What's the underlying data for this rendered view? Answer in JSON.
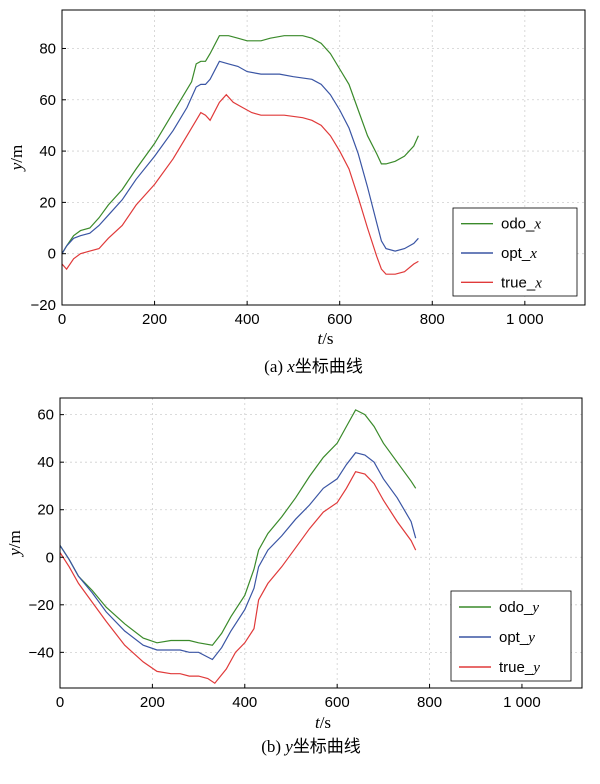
{
  "chart_data": [
    {
      "type": "line",
      "caption": "(a) x坐标曲线",
      "xlabel": "t/s",
      "ylabel": "y/m",
      "xlim": [
        0,
        1130
      ],
      "ylim": [
        -20,
        95
      ],
      "xticks": [
        0,
        200,
        400,
        600,
        800,
        1000
      ],
      "xtick_labels": [
        "0",
        "200",
        "400",
        "600",
        "800",
        "1 000"
      ],
      "yticks": [
        -20,
        0,
        20,
        40,
        60,
        80
      ],
      "ytick_labels": [
        "−20",
        "0",
        "20",
        "40",
        "60",
        "80"
      ],
      "grid": true,
      "legend": "lower-right",
      "series": [
        {
          "name": "odo_x",
          "color": "#3a8a2a",
          "points": [
            [
              0,
              0
            ],
            [
              10,
              3
            ],
            [
              25,
              7
            ],
            [
              40,
              9
            ],
            [
              60,
              10
            ],
            [
              80,
              14
            ],
            [
              100,
              19
            ],
            [
              130,
              25
            ],
            [
              160,
              33
            ],
            [
              200,
              43
            ],
            [
              240,
              55
            ],
            [
              280,
              67
            ],
            [
              290,
              74
            ],
            [
              300,
              75
            ],
            [
              310,
              75
            ],
            [
              320,
              78
            ],
            [
              340,
              85
            ],
            [
              360,
              85
            ],
            [
              380,
              84
            ],
            [
              400,
              83
            ],
            [
              430,
              83
            ],
            [
              450,
              84
            ],
            [
              480,
              85
            ],
            [
              520,
              85
            ],
            [
              540,
              84
            ],
            [
              560,
              82
            ],
            [
              580,
              78
            ],
            [
              600,
              72
            ],
            [
              620,
              66
            ],
            [
              640,
              56
            ],
            [
              660,
              46
            ],
            [
              680,
              39
            ],
            [
              690,
              35
            ],
            [
              700,
              35
            ],
            [
              720,
              36
            ],
            [
              740,
              38
            ],
            [
              760,
              42
            ],
            [
              770,
              46
            ]
          ]
        },
        {
          "name": "opt_x",
          "color": "#3a55a4",
          "points": [
            [
              0,
              0
            ],
            [
              10,
              3
            ],
            [
              25,
              6
            ],
            [
              40,
              7
            ],
            [
              60,
              8
            ],
            [
              80,
              11
            ],
            [
              100,
              15
            ],
            [
              130,
              21
            ],
            [
              160,
              29
            ],
            [
              200,
              38
            ],
            [
              240,
              48
            ],
            [
              270,
              57
            ],
            [
              290,
              65
            ],
            [
              300,
              66
            ],
            [
              310,
              66
            ],
            [
              320,
              68
            ],
            [
              340,
              75
            ],
            [
              360,
              74
            ],
            [
              380,
              73
            ],
            [
              400,
              71
            ],
            [
              430,
              70
            ],
            [
              450,
              70
            ],
            [
              470,
              70
            ],
            [
              500,
              69
            ],
            [
              540,
              68
            ],
            [
              560,
              66
            ],
            [
              580,
              62
            ],
            [
              600,
              56
            ],
            [
              620,
              49
            ],
            [
              640,
              39
            ],
            [
              660,
              26
            ],
            [
              680,
              12
            ],
            [
              690,
              5
            ],
            [
              700,
              2
            ],
            [
              720,
              1
            ],
            [
              740,
              2
            ],
            [
              760,
              4
            ],
            [
              770,
              6
            ]
          ]
        },
        {
          "name": "true_x",
          "color": "#e03a3a",
          "points": [
            [
              0,
              -4
            ],
            [
              10,
              -6
            ],
            [
              25,
              -2
            ],
            [
              40,
              0
            ],
            [
              60,
              1
            ],
            [
              80,
              2
            ],
            [
              100,
              6
            ],
            [
              130,
              11
            ],
            [
              160,
              19
            ],
            [
              200,
              27
            ],
            [
              240,
              37
            ],
            [
              270,
              46
            ],
            [
              290,
              52
            ],
            [
              300,
              55
            ],
            [
              310,
              54
            ],
            [
              320,
              52
            ],
            [
              340,
              59
            ],
            [
              355,
              62
            ],
            [
              370,
              59
            ],
            [
              390,
              57
            ],
            [
              410,
              55
            ],
            [
              430,
              54
            ],
            [
              450,
              54
            ],
            [
              480,
              54
            ],
            [
              520,
              53
            ],
            [
              540,
              52
            ],
            [
              560,
              50
            ],
            [
              580,
              46
            ],
            [
              600,
              40
            ],
            [
              620,
              33
            ],
            [
              640,
              22
            ],
            [
              660,
              10
            ],
            [
              680,
              -1
            ],
            [
              690,
              -6
            ],
            [
              700,
              -8
            ],
            [
              720,
              -8
            ],
            [
              740,
              -7
            ],
            [
              760,
              -4
            ],
            [
              770,
              -3
            ]
          ]
        }
      ]
    },
    {
      "type": "line",
      "caption": "(b) y坐标曲线",
      "xlabel": "t/s",
      "ylabel": "y/m",
      "xlim": [
        0,
        1130
      ],
      "ylim": [
        -55,
        67
      ],
      "xticks": [
        0,
        200,
        400,
        600,
        800,
        1000
      ],
      "xtick_labels": [
        "0",
        "200",
        "400",
        "600",
        "800",
        "1 000"
      ],
      "yticks": [
        -40,
        -20,
        0,
        20,
        40,
        60
      ],
      "ytick_labels": [
        "−40",
        "−20",
        "0",
        "20",
        "40",
        "60"
      ],
      "grid": true,
      "legend": "lower-right",
      "series": [
        {
          "name": "odo_y",
          "color": "#3a8a2a",
          "points": [
            [
              0,
              5
            ],
            [
              20,
              -1
            ],
            [
              40,
              -8
            ],
            [
              70,
              -14
            ],
            [
              100,
              -21
            ],
            [
              140,
              -28
            ],
            [
              180,
              -34
            ],
            [
              210,
              -36
            ],
            [
              240,
              -35
            ],
            [
              260,
              -35
            ],
            [
              280,
              -35
            ],
            [
              300,
              -36
            ],
            [
              330,
              -37
            ],
            [
              350,
              -32
            ],
            [
              370,
              -25
            ],
            [
              400,
              -16
            ],
            [
              420,
              -5
            ],
            [
              430,
              3
            ],
            [
              450,
              10
            ],
            [
              480,
              17
            ],
            [
              510,
              25
            ],
            [
              540,
              34
            ],
            [
              570,
              42
            ],
            [
              600,
              48
            ],
            [
              620,
              55
            ],
            [
              640,
              62
            ],
            [
              660,
              60
            ],
            [
              680,
              55
            ],
            [
              700,
              48
            ],
            [
              730,
              40
            ],
            [
              760,
              32
            ],
            [
              770,
              29
            ]
          ]
        },
        {
          "name": "opt_y",
          "color": "#3a55a4",
          "points": [
            [
              0,
              5
            ],
            [
              20,
              -1
            ],
            [
              40,
              -8
            ],
            [
              70,
              -15
            ],
            [
              100,
              -23
            ],
            [
              140,
              -31
            ],
            [
              180,
              -37
            ],
            [
              210,
              -39
            ],
            [
              240,
              -39
            ],
            [
              260,
              -39
            ],
            [
              280,
              -40
            ],
            [
              300,
              -40
            ],
            [
              320,
              -42
            ],
            [
              330,
              -43
            ],
            [
              350,
              -38
            ],
            [
              370,
              -31
            ],
            [
              400,
              -22
            ],
            [
              420,
              -13
            ],
            [
              430,
              -4
            ],
            [
              450,
              3
            ],
            [
              480,
              9
            ],
            [
              510,
              16
            ],
            [
              540,
              22
            ],
            [
              570,
              29
            ],
            [
              600,
              33
            ],
            [
              620,
              39
            ],
            [
              640,
              44
            ],
            [
              660,
              43
            ],
            [
              680,
              40
            ],
            [
              700,
              33
            ],
            [
              730,
              25
            ],
            [
              760,
              15
            ],
            [
              770,
              8
            ]
          ]
        },
        {
          "name": "true_y",
          "color": "#e03a3a",
          "points": [
            [
              0,
              2
            ],
            [
              20,
              -4
            ],
            [
              40,
              -11
            ],
            [
              70,
              -19
            ],
            [
              100,
              -27
            ],
            [
              140,
              -37
            ],
            [
              180,
              -44
            ],
            [
              210,
              -48
            ],
            [
              240,
              -49
            ],
            [
              260,
              -49
            ],
            [
              280,
              -50
            ],
            [
              300,
              -50
            ],
            [
              320,
              -51
            ],
            [
              335,
              -53
            ],
            [
              360,
              -47
            ],
            [
              380,
              -40
            ],
            [
              400,
              -36
            ],
            [
              420,
              -30
            ],
            [
              430,
              -18
            ],
            [
              450,
              -11
            ],
            [
              480,
              -4
            ],
            [
              510,
              4
            ],
            [
              540,
              12
            ],
            [
              570,
              19
            ],
            [
              600,
              23
            ],
            [
              620,
              29
            ],
            [
              640,
              36
            ],
            [
              660,
              35
            ],
            [
              680,
              31
            ],
            [
              700,
              24
            ],
            [
              730,
              15
            ],
            [
              760,
              7
            ],
            [
              770,
              3
            ]
          ]
        }
      ]
    }
  ]
}
